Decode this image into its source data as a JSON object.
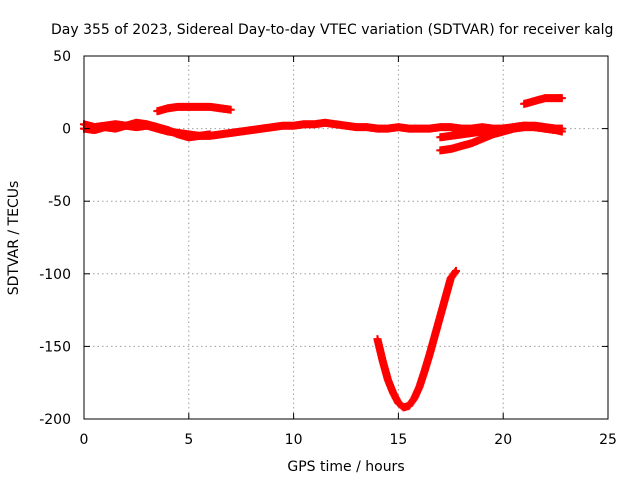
{
  "chart_data": {
    "type": "scatter",
    "title": "Day 355 of 2023, Sidereal Day-to-day VTEC variation (SDTVAR) for receiver kalg",
    "xlabel": "GPS time / hours",
    "ylabel": "SDTVAR / TECUs",
    "xlim": [
      0,
      25
    ],
    "ylim": [
      -200,
      50
    ],
    "xticks": [
      "0",
      "5",
      "10",
      "15",
      "20",
      "25"
    ],
    "yticks": [
      "50",
      "0",
      "-50",
      "-100",
      "-150",
      "-200"
    ],
    "xtick_values": [
      0,
      5,
      10,
      15,
      20,
      25
    ],
    "ytick_values": [
      50,
      0,
      -50,
      -100,
      -150,
      -200
    ],
    "grid": true,
    "marker": "plus",
    "color": "#ff0000",
    "series": [
      {
        "x": [
          0,
          0.5,
          1,
          1.5,
          2,
          2.5,
          3,
          3.5,
          4,
          4.5,
          5,
          5.5,
          6,
          6.5,
          7,
          7.5,
          8,
          8.5,
          9,
          9.5,
          10,
          10.5,
          11,
          11.5,
          12,
          12.5,
          13,
          13.5,
          14,
          14.5,
          15,
          15.5,
          16,
          16.5,
          17,
          17.5,
          18,
          18.5,
          19,
          19.5,
          20,
          20.5,
          21,
          21.5,
          22,
          22.5,
          22.8
        ],
        "y": [
          3,
          1,
          2,
          3,
          2,
          1,
          2,
          0,
          -2,
          -3,
          -4,
          -5,
          -5,
          -4,
          -3,
          -2,
          -1,
          0,
          1,
          2,
          2,
          3,
          3,
          4,
          3,
          2,
          1,
          1,
          0,
          0,
          1,
          0,
          0,
          0,
          1,
          1,
          0,
          0,
          1,
          0,
          0,
          1,
          2,
          2,
          1,
          0,
          0
        ]
      },
      {
        "x": [
          0,
          0.5,
          1,
          1.5,
          2,
          2.5,
          3,
          3.5,
          4,
          4.5,
          5,
          5.5,
          6
        ],
        "y": [
          0,
          -1,
          1,
          0,
          2,
          4,
          3,
          1,
          -1,
          -4,
          -6,
          -5,
          -4
        ]
      },
      {
        "x": [
          3.5,
          4,
          4.5,
          5,
          5.5,
          6,
          6.5,
          7
        ],
        "y": [
          12,
          14,
          15,
          15,
          15,
          15,
          14,
          13
        ]
      },
      {
        "x": [
          17,
          17.5,
          18,
          18.5,
          19,
          19.5,
          20,
          20.5,
          21,
          21.5,
          22,
          22.5,
          22.8
        ],
        "y": [
          -15,
          -14,
          -12,
          -10,
          -7,
          -4,
          -2,
          0,
          1,
          1,
          0,
          -1,
          -2
        ]
      },
      {
        "x": [
          17,
          17.5,
          18,
          18.5,
          19,
          19.5,
          20,
          20.5,
          21,
          21.5,
          22,
          22.5
        ],
        "y": [
          -6,
          -5,
          -4,
          -3,
          -2,
          -1,
          0,
          1,
          2,
          1,
          0,
          -1
        ]
      },
      {
        "x": [
          21,
          21.5,
          22,
          22.5,
          22.8
        ],
        "y": [
          17,
          19,
          21,
          21,
          21
        ]
      },
      {
        "x": [
          14,
          14.25,
          14.5,
          14.75,
          15,
          15.25,
          15.5,
          15.75,
          16,
          16.25,
          16.5,
          16.75,
          17,
          17.25,
          17.5,
          17.75
        ],
        "y": [
          -145,
          -160,
          -173,
          -182,
          -189,
          -192,
          -191,
          -186,
          -178,
          -167,
          -155,
          -142,
          -129,
          -116,
          -103,
          -98
        ]
      }
    ]
  }
}
